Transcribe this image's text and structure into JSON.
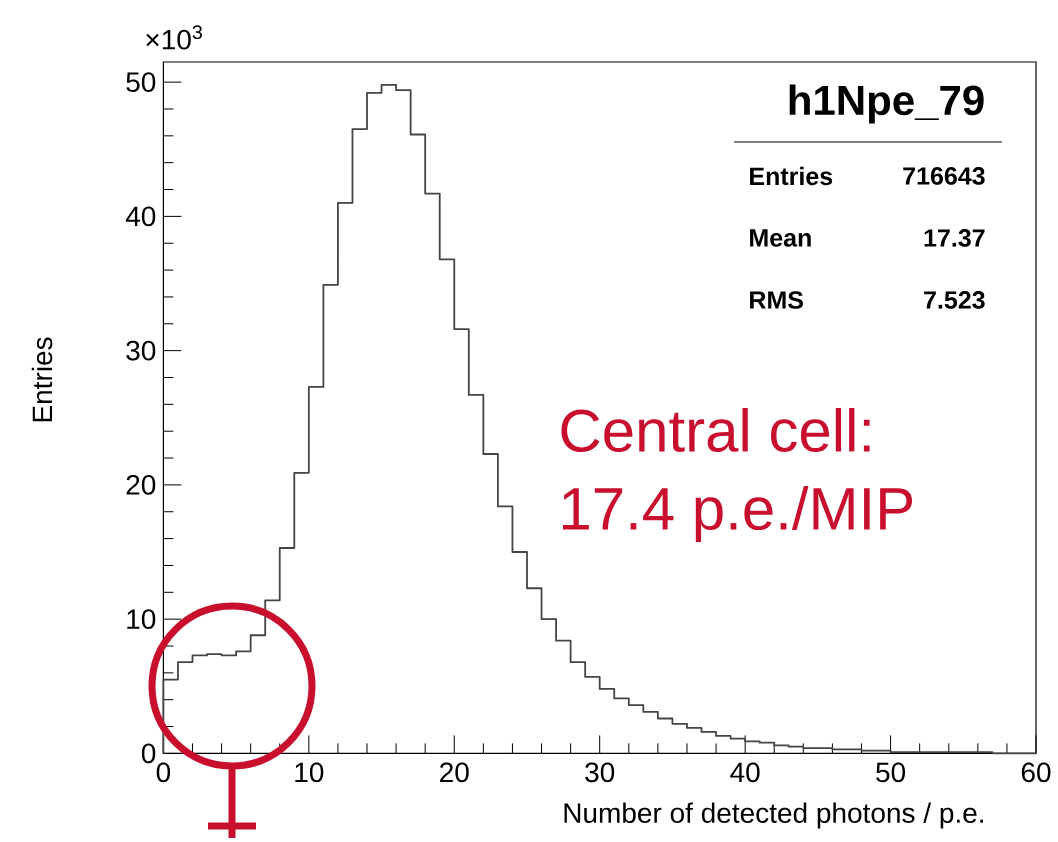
{
  "chart_data": {
    "type": "histogram",
    "title": "h1Npe_79",
    "xlabel": "Number of detected photons / p.e.",
    "ylabel": "Entries",
    "bins": [
      0,
      1,
      2,
      3,
      4,
      5,
      6,
      7,
      8,
      9,
      10,
      11,
      12,
      13,
      14,
      15,
      16,
      17,
      18,
      19,
      20,
      21,
      22,
      23,
      24,
      25,
      26,
      27,
      28,
      29,
      30,
      31,
      32,
      33,
      34,
      35,
      36,
      37,
      38,
      39,
      40,
      41,
      42,
      43,
      44,
      45,
      46,
      47,
      48,
      49,
      50,
      51,
      52,
      53,
      54,
      55,
      56,
      57,
      58,
      59,
      60
    ],
    "values": [
      5.5,
      6.8,
      7.3,
      7.4,
      7.3,
      7.6,
      8.8,
      11.4,
      15.3,
      20.9,
      27.3,
      34.9,
      41.0,
      46.5,
      49.2,
      49.8,
      49.4,
      46.1,
      41.7,
      36.8,
      31.6,
      26.7,
      22.3,
      18.4,
      15.0,
      12.3,
      10.0,
      8.4,
      6.8,
      5.7,
      4.8,
      4.1,
      3.6,
      3.1,
      2.6,
      2.2,
      1.9,
      1.6,
      1.3,
      1.1,
      0.9,
      0.8,
      0.6,
      0.5,
      0.4,
      0.4,
      0.3,
      0.3,
      0.2,
      0.2,
      0.1,
      0.1,
      0.1,
      0.1,
      0.1,
      0.1,
      0.1,
      0.0,
      0.0,
      0.0
    ],
    "color": "#444444",
    "xlim": [
      0,
      60
    ],
    "ylim": [
      0,
      51.5
    ],
    "xticks": [
      0,
      10,
      20,
      30,
      40,
      50,
      60
    ],
    "yticks": [
      0,
      10,
      20,
      30,
      40,
      50
    ],
    "annotations": [
      "×10$^{3}$",
      "Entries",
      "716643",
      "Mean",
      "17.37",
      "RMS",
      "7.523",
      "Central cell:",
      "17.4 p.e./MIP"
    ]
  }
}
